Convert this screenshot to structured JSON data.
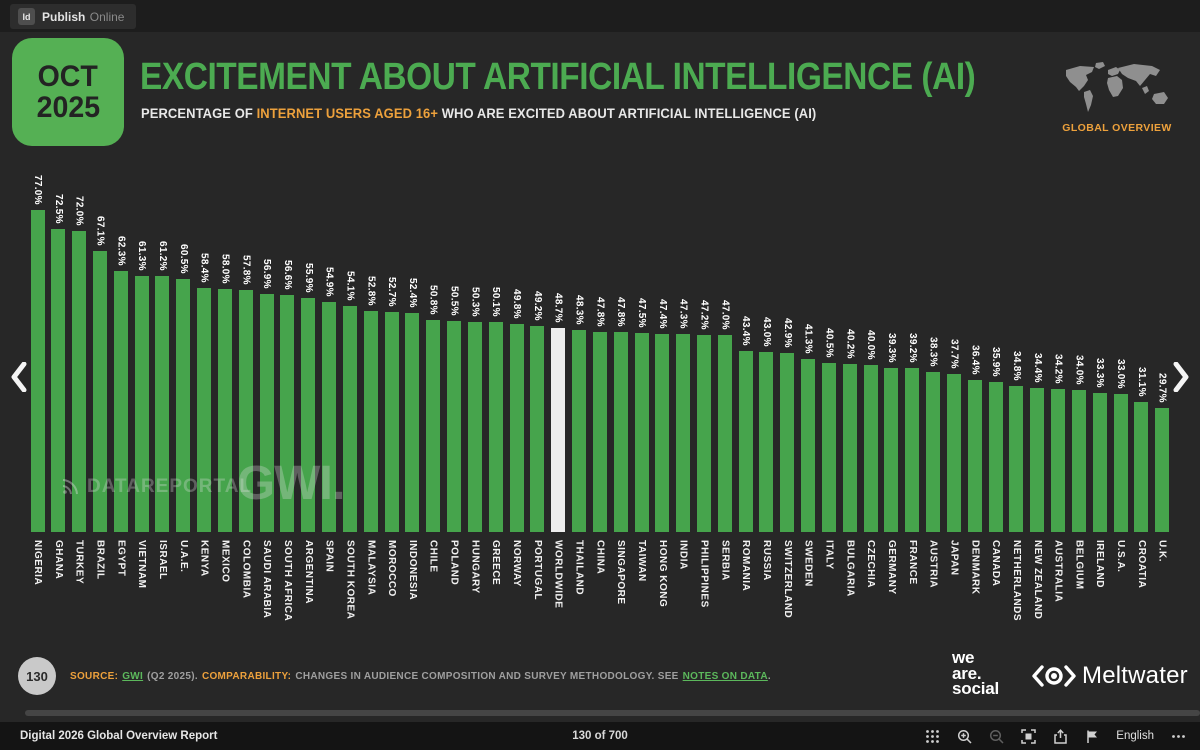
{
  "viewer": {
    "logo": "Id",
    "app_name": "Publish",
    "app_suffix": "Online",
    "doc_title": "Digital 2026 Global Overview Report",
    "page_indicator": "130 of 700",
    "language": "English"
  },
  "header": {
    "date_month": "OCT",
    "date_year": "2025",
    "title": "EXCITEMENT ABOUT ARTIFICIAL INTELLIGENCE (AI)",
    "subtitle_prefix": "PERCENTAGE OF ",
    "subtitle_highlight": "INTERNET USERS AGED 16+",
    "subtitle_suffix": " WHO ARE EXCITED ABOUT ARTIFICIAL INTELLIGENCE (AI)",
    "region_label": "GLOBAL OVERVIEW"
  },
  "watermarks": {
    "datareportal": "DATAREPORTAL",
    "gwi": "GWI."
  },
  "footnote": {
    "page_number": "130",
    "source_label": "SOURCE:",
    "source_link": "GWI",
    "source_detail": "(Q2 2025).",
    "comparability_label": "COMPARABILITY:",
    "comparability_text": "CHANGES IN AUDIENCE COMPOSITION AND SURVEY METHODOLOGY. SEE",
    "notes_link": "NOTES ON DATA",
    "trailing_period": "."
  },
  "brands": {
    "we_are_social_lines": [
      "we",
      "are.",
      "social"
    ],
    "meltwater": "Meltwater"
  },
  "colors": {
    "accent_green": "#4cab51",
    "bar_green": "#46a44c",
    "accent_orange": "#eda13c",
    "highlight_bar": "#ededed"
  },
  "chart_data": {
    "type": "bar",
    "title": "EXCITEMENT ABOUT ARTIFICIAL INTELLIGENCE (AI)",
    "subtitle": "PERCENTAGE OF INTERNET USERS AGED 16+ WHO ARE EXCITED ABOUT ARTIFICIAL INTELLIGENCE (AI)",
    "unit": "%",
    "ylim": [
      0,
      80
    ],
    "grid": false,
    "legend": "none",
    "highlight_category": "WORLDWIDE",
    "categories": [
      "NIGERIA",
      "GHANA",
      "TURKEY",
      "BRAZIL",
      "EGYPT",
      "VIETNAM",
      "ISRAEL",
      "U.A.E.",
      "KENYA",
      "MEXICO",
      "COLOMBIA",
      "SAUDI ARABIA",
      "SOUTH AFRICA",
      "ARGENTINA",
      "SPAIN",
      "SOUTH KOREA",
      "MALAYSIA",
      "MOROCCO",
      "INDONESIA",
      "CHILE",
      "POLAND",
      "HUNGARY",
      "GREECE",
      "NORWAY",
      "PORTUGAL",
      "WORLDWIDE",
      "THAILAND",
      "CHINA",
      "SINGAPORE",
      "TAIWAN",
      "HONG KONG",
      "INDIA",
      "PHILIPPINES",
      "SERBIA",
      "ROMANIA",
      "RUSSIA",
      "SWITZERLAND",
      "SWEDEN",
      "ITALY",
      "BULGARIA",
      "CZECHIA",
      "GERMANY",
      "FRANCE",
      "AUSTRIA",
      "JAPAN",
      "DENMARK",
      "CANADA",
      "NETHERLANDS",
      "NEW ZEALAND",
      "AUSTRALIA",
      "BELGIUM",
      "IRELAND",
      "U.S.A.",
      "CROATIA",
      "U.K."
    ],
    "values": [
      77.0,
      72.5,
      72.0,
      67.1,
      62.3,
      61.3,
      61.2,
      60.5,
      58.4,
      58.0,
      57.8,
      56.9,
      56.6,
      55.9,
      54.9,
      54.1,
      52.8,
      52.7,
      52.4,
      50.8,
      50.5,
      50.3,
      50.1,
      49.8,
      49.2,
      48.7,
      48.3,
      47.8,
      47.8,
      47.5,
      47.4,
      47.3,
      47.2,
      47.0,
      43.4,
      43.0,
      42.9,
      41.3,
      40.5,
      40.2,
      40.0,
      39.3,
      39.2,
      38.3,
      37.7,
      36.4,
      35.9,
      34.8,
      34.4,
      34.2,
      34.0,
      33.3,
      33.0,
      31.1,
      29.7
    ]
  }
}
